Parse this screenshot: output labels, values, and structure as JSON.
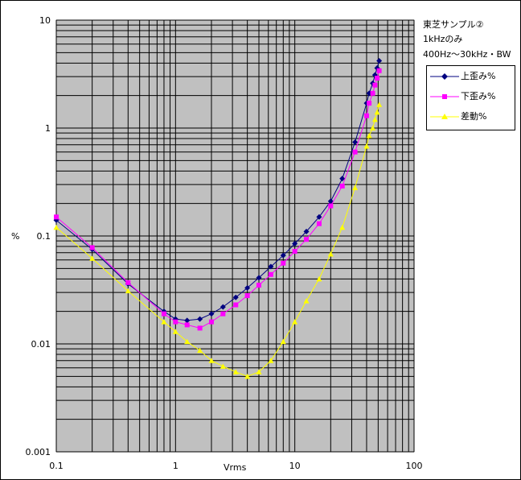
{
  "chart_data": {
    "type": "line",
    "title": "東芝サンプル②",
    "notes": [
      "1kHzのみ",
      "400Hz〜30kHz・BW"
    ],
    "xlabel": "Vrms",
    "ylabel": "%",
    "xscale": "log",
    "yscale": "log",
    "xlim": [
      0.1,
      100
    ],
    "ylim": [
      0.001,
      10
    ],
    "x_ticks": [
      "0.1",
      "1",
      "10",
      "100"
    ],
    "y_ticks": [
      "10",
      "1",
      "0.1",
      "0.01",
      "0.001"
    ],
    "grid": true,
    "plot_background": "#c0c0c0",
    "legend_position": "right",
    "series": [
      {
        "name": "上歪み%",
        "color": "#000080",
        "marker": "diamond",
        "points": [
          [
            0.1,
            0.14
          ],
          [
            0.2,
            0.075
          ],
          [
            0.4,
            0.036
          ],
          [
            0.8,
            0.02
          ],
          [
            1.0,
            0.017
          ],
          [
            1.25,
            0.0165
          ],
          [
            1.6,
            0.017
          ],
          [
            2.0,
            0.019
          ],
          [
            2.5,
            0.022
          ],
          [
            3.2,
            0.027
          ],
          [
            4.0,
            0.033
          ],
          [
            5.0,
            0.041
          ],
          [
            6.3,
            0.052
          ],
          [
            8.0,
            0.066
          ],
          [
            10,
            0.085
          ],
          [
            12.5,
            0.11
          ],
          [
            16,
            0.15
          ],
          [
            20,
            0.21
          ],
          [
            25,
            0.34
          ],
          [
            32,
            0.74
          ],
          [
            40,
            1.7
          ],
          [
            42,
            2.1
          ],
          [
            45,
            2.6
          ],
          [
            47,
            3.1
          ],
          [
            49,
            3.6
          ],
          [
            51,
            4.2
          ]
        ]
      },
      {
        "name": "下歪み%",
        "color": "#ff00ff",
        "marker": "square",
        "points": [
          [
            0.1,
            0.15
          ],
          [
            0.2,
            0.078
          ],
          [
            0.4,
            0.037
          ],
          [
            0.8,
            0.019
          ],
          [
            1.0,
            0.016
          ],
          [
            1.25,
            0.015
          ],
          [
            1.6,
            0.014
          ],
          [
            2.0,
            0.016
          ],
          [
            2.5,
            0.019
          ],
          [
            3.2,
            0.023
          ],
          [
            4.0,
            0.028
          ],
          [
            5.0,
            0.035
          ],
          [
            6.3,
            0.044
          ],
          [
            8.0,
            0.056
          ],
          [
            10,
            0.072
          ],
          [
            12.5,
            0.093
          ],
          [
            16,
            0.13
          ],
          [
            20,
            0.19
          ],
          [
            25,
            0.29
          ],
          [
            32,
            0.6
          ],
          [
            40,
            1.3
          ],
          [
            42,
            1.7
          ],
          [
            45,
            2.1
          ],
          [
            47,
            2.5
          ],
          [
            49,
            2.9
          ],
          [
            51,
            3.4
          ]
        ]
      },
      {
        "name": "差動%",
        "color": "#ffff00",
        "marker": "triangle",
        "points": [
          [
            0.1,
            0.12
          ],
          [
            0.2,
            0.062
          ],
          [
            0.4,
            0.031
          ],
          [
            0.8,
            0.016
          ],
          [
            1.0,
            0.013
          ],
          [
            1.25,
            0.0105
          ],
          [
            1.6,
            0.0087
          ],
          [
            2.0,
            0.007
          ],
          [
            2.5,
            0.0062
          ],
          [
            3.2,
            0.0055
          ],
          [
            4.0,
            0.005
          ],
          [
            5.0,
            0.0055
          ],
          [
            6.3,
            0.007
          ],
          [
            8.0,
            0.0105
          ],
          [
            10,
            0.016
          ],
          [
            12.5,
            0.025
          ],
          [
            16,
            0.04
          ],
          [
            20,
            0.068
          ],
          [
            25,
            0.12
          ],
          [
            32,
            0.28
          ],
          [
            40,
            0.68
          ],
          [
            42,
            0.85
          ],
          [
            45,
            1.0
          ],
          [
            47,
            1.2
          ],
          [
            49,
            1.4
          ],
          [
            51,
            1.65
          ]
        ]
      }
    ]
  }
}
